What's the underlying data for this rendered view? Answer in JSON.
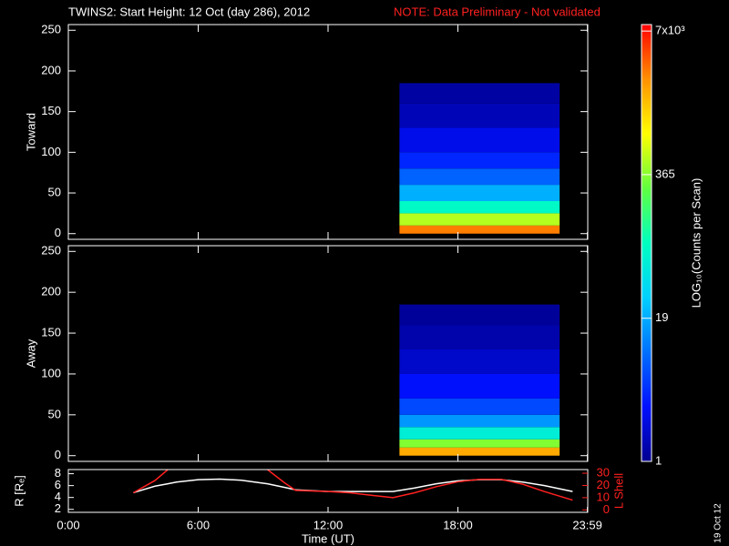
{
  "chart_data": [
    {
      "type": "spectrogram",
      "title": "TWINS2: Start Height: 12 Oct (day 286), 2012",
      "note": "NOTE: Data Preliminary - Not validated",
      "ylabel": "Toward",
      "xlim": [
        0,
        24
      ],
      "ylim": [
        -7,
        257
      ],
      "yticks": [
        0,
        50,
        100,
        150,
        200,
        250
      ],
      "time_range": [
        15.3,
        22.7
      ],
      "height_bins": [
        0,
        10,
        25,
        40,
        60,
        80,
        100,
        130,
        160,
        185
      ],
      "counts": [
        3000,
        500,
        80,
        20,
        8,
        4,
        2.5,
        1.5,
        1.2
      ]
    },
    {
      "type": "spectrogram",
      "ylabel": "Away",
      "xlim": [
        0,
        24
      ],
      "ylim": [
        -7,
        257
      ],
      "yticks": [
        0,
        50,
        100,
        150,
        200,
        250
      ],
      "time_range": [
        15.3,
        22.7
      ],
      "height_bins": [
        0,
        10,
        20,
        35,
        50,
        70,
        100,
        130,
        160,
        185
      ],
      "counts": [
        2000,
        350,
        60,
        15,
        6,
        3,
        1.8,
        1.3,
        1.1
      ]
    },
    {
      "type": "line",
      "xlabel": "Time (UT)",
      "ylabel": "R [Rₑ]",
      "y2label": "L Shell",
      "xlim": [
        0,
        24
      ],
      "xticks": [
        {
          "value": 0,
          "label": "0:00"
        },
        {
          "value": 6,
          "label": "6:00"
        },
        {
          "value": 12,
          "label": "12:00"
        },
        {
          "value": 18,
          "label": "18:00"
        },
        {
          "value": 23.983,
          "label": "23:59"
        }
      ],
      "ylim": [
        1.5,
        8.7
      ],
      "yticks": [
        2,
        4,
        6,
        8
      ],
      "y2lim": [
        -2,
        33
      ],
      "y2ticks": [
        0,
        10,
        20,
        30
      ],
      "x": [
        3,
        4,
        4.6,
        5,
        6,
        7,
        8,
        9,
        9.2,
        10,
        10.5,
        12,
        13,
        14,
        15,
        16,
        17,
        18,
        19,
        20,
        21,
        22,
        23.3
      ],
      "series": [
        {
          "color": "#ffffff",
          "values": [
            4.8,
            5.9,
            6.3,
            6.6,
            7.0,
            7.1,
            6.9,
            6.4,
            6.3,
            5.7,
            5.3,
            5.0,
            5.0,
            5.0,
            5.0,
            5.6,
            6.3,
            6.8,
            7.0,
            7.0,
            6.6,
            6.0,
            5.0
          ]
        },
        {
          "color": "#ff2020",
          "axis": "y2",
          "values": [
            14,
            24,
            33,
            null,
            null,
            null,
            null,
            null,
            33,
            22,
            16,
            15,
            14,
            12,
            10,
            14,
            19,
            23,
            25,
            25,
            21,
            15,
            8
          ]
        }
      ]
    }
  ],
  "colorbar": {
    "label": "LOG₁₀(Counts per Scan)",
    "scale": "log",
    "clim": [
      1,
      8000
    ],
    "ticks": [
      {
        "value": 7000,
        "label": "7x10³"
      },
      365,
      19,
      1
    ],
    "colormap": [
      "#000090",
      "#0010ff",
      "#0070ff",
      "#00d0ff",
      "#00ffc0",
      "#60ff40",
      "#ffff00",
      "#ff9000",
      "#ff0000"
    ]
  },
  "footer": "19 Oct 12"
}
